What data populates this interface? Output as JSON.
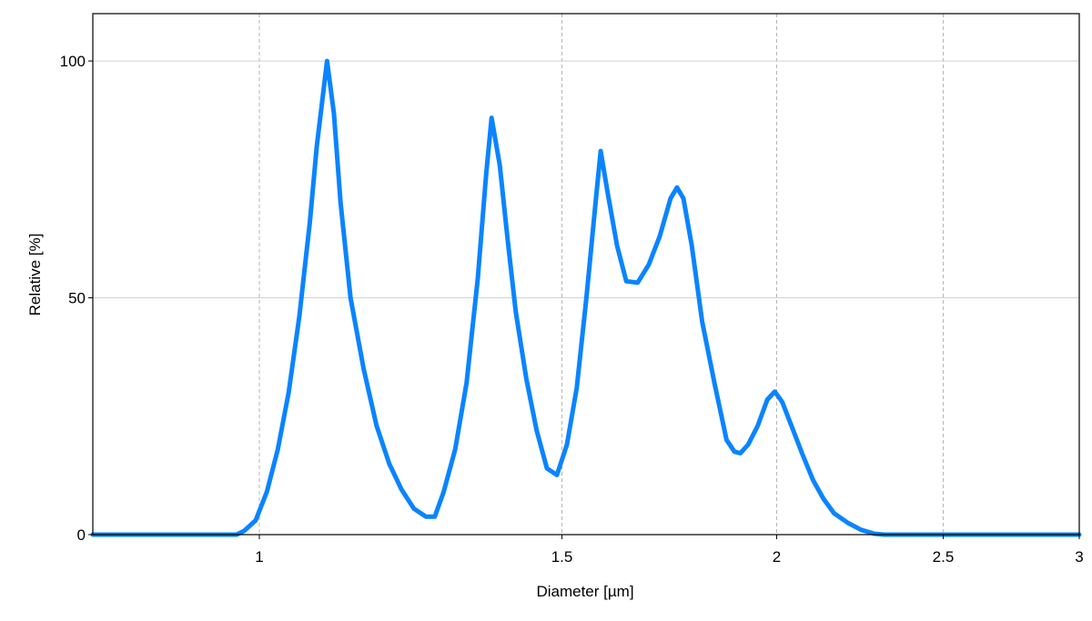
{
  "chart_data": {
    "type": "line",
    "title": "",
    "xlabel": "Diameter [µm]",
    "ylabel": "Relative [%]",
    "x_scale": "log",
    "xlim": [
      0.8,
      3
    ],
    "ylim": [
      0,
      110
    ],
    "x_ticks": [
      {
        "value": 1,
        "label": "1"
      },
      {
        "value": 1.5,
        "label": "1.5"
      },
      {
        "value": 2,
        "label": "2"
      },
      {
        "value": 2.5,
        "label": "2.5"
      },
      {
        "value": 3,
        "label": "3"
      }
    ],
    "y_ticks": [
      {
        "value": 0,
        "label": "0"
      },
      {
        "value": 50,
        "label": "50"
      },
      {
        "value": 100,
        "label": "100"
      }
    ],
    "x_grid": "dashed",
    "y_grid": "solid",
    "legend": "none",
    "series": [
      {
        "color": "#0A84FF",
        "points": [
          [
            0.8,
            0
          ],
          [
            0.97,
            0
          ],
          [
            0.98,
            0.8
          ],
          [
            0.995,
            3
          ],
          [
            1.01,
            9
          ],
          [
            1.025,
            18
          ],
          [
            1.04,
            30
          ],
          [
            1.055,
            46
          ],
          [
            1.07,
            66
          ],
          [
            1.08,
            82
          ],
          [
            1.095,
            100
          ],
          [
            1.105,
            89
          ],
          [
            1.115,
            70
          ],
          [
            1.13,
            50
          ],
          [
            1.15,
            35
          ],
          [
            1.17,
            23
          ],
          [
            1.19,
            15
          ],
          [
            1.21,
            9.5
          ],
          [
            1.23,
            5.5
          ],
          [
            1.25,
            3.8
          ],
          [
            1.265,
            3.8
          ],
          [
            1.28,
            9
          ],
          [
            1.3,
            18
          ],
          [
            1.32,
            32
          ],
          [
            1.34,
            54
          ],
          [
            1.355,
            76
          ],
          [
            1.365,
            88
          ],
          [
            1.38,
            78
          ],
          [
            1.395,
            62
          ],
          [
            1.41,
            47
          ],
          [
            1.43,
            33
          ],
          [
            1.45,
            22
          ],
          [
            1.47,
            14
          ],
          [
            1.49,
            12.6
          ],
          [
            1.51,
            19
          ],
          [
            1.53,
            31
          ],
          [
            1.55,
            50
          ],
          [
            1.57,
            71
          ],
          [
            1.58,
            81
          ],
          [
            1.595,
            72
          ],
          [
            1.615,
            61
          ],
          [
            1.635,
            53.5
          ],
          [
            1.66,
            53.2
          ],
          [
            1.685,
            57
          ],
          [
            1.71,
            63
          ],
          [
            1.735,
            71
          ],
          [
            1.75,
            73.3
          ],
          [
            1.765,
            71
          ],
          [
            1.785,
            61
          ],
          [
            1.81,
            45
          ],
          [
            1.84,
            32
          ],
          [
            1.87,
            20
          ],
          [
            1.89,
            17.5
          ],
          [
            1.905,
            17.2
          ],
          [
            1.925,
            19
          ],
          [
            1.95,
            23
          ],
          [
            1.975,
            28.5
          ],
          [
            1.995,
            30.2
          ],
          [
            2.015,
            28
          ],
          [
            2.04,
            23
          ],
          [
            2.07,
            17
          ],
          [
            2.1,
            11.5
          ],
          [
            2.13,
            7.5
          ],
          [
            2.16,
            4.5
          ],
          [
            2.2,
            2.5
          ],
          [
            2.24,
            1
          ],
          [
            2.28,
            0.2
          ],
          [
            2.31,
            0
          ],
          [
            3.0,
            0
          ]
        ]
      }
    ]
  }
}
